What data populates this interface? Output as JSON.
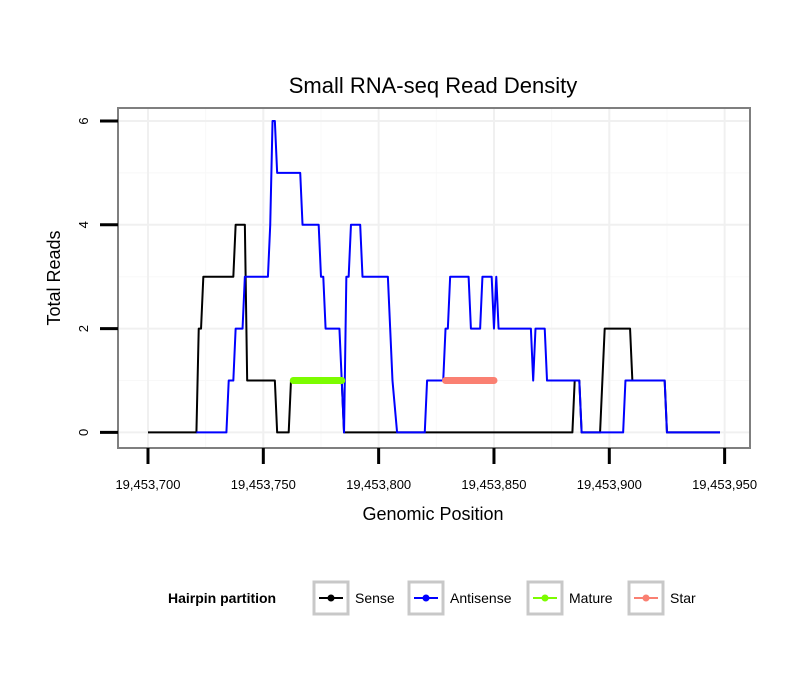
{
  "chart_data": {
    "type": "line",
    "title": "Small RNA-seq Read Density",
    "xlabel": "Genomic Position",
    "ylabel": "Total Reads",
    "xlim": [
      19453687,
      19453961
    ],
    "ylim": [
      -0.3,
      6.25
    ],
    "x_ticks": [
      19453700,
      19453750,
      19453800,
      19453850,
      19453900,
      19453950
    ],
    "x_tick_labels": [
      "19,453,700",
      "19,453,750",
      "19,453,800",
      "19,453,850",
      "19,453,900",
      "19,453,950"
    ],
    "y_ticks": [
      0,
      2,
      4,
      6
    ],
    "y_tick_labels": [
      "0",
      "2",
      "4",
      "6"
    ],
    "grid": true,
    "legend": {
      "title": "Hairpin partition",
      "position": "bottom",
      "entries": [
        {
          "name": "Sense",
          "color": "#000000"
        },
        {
          "name": "Antisense",
          "color": "#0000ff"
        },
        {
          "name": "Mature",
          "color": "#7cfc00"
        },
        {
          "name": "Star",
          "color": "#fa8072"
        }
      ]
    },
    "series": [
      {
        "name": "Sense",
        "color": "#000000",
        "points": [
          [
            19453700,
            0
          ],
          [
            19453721,
            0
          ],
          [
            19453722,
            2
          ],
          [
            19453723,
            2
          ],
          [
            19453724,
            3
          ],
          [
            19453737,
            3
          ],
          [
            19453738,
            4
          ],
          [
            19453742,
            4
          ],
          [
            19453743,
            1
          ],
          [
            19453755,
            1
          ],
          [
            19453756,
            0
          ],
          [
            19453761,
            0
          ],
          [
            19453762,
            1
          ],
          [
            19453784,
            1
          ],
          [
            19453785,
            0
          ],
          [
            19453850,
            0
          ],
          [
            19453851,
            0
          ],
          [
            19453884,
            0
          ],
          [
            19453885,
            1
          ],
          [
            19453887,
            1
          ],
          [
            19453888,
            0
          ],
          [
            19453896,
            0
          ],
          [
            19453897,
            1
          ],
          [
            19453898,
            2
          ],
          [
            19453909,
            2
          ],
          [
            19453910,
            1
          ],
          [
            19453924,
            1
          ],
          [
            19453925,
            0
          ],
          [
            19453948,
            0
          ]
        ]
      },
      {
        "name": "Antisense",
        "color": "#0000ff",
        "points": [
          [
            19453721,
            0
          ],
          [
            19453734,
            0
          ],
          [
            19453735,
            1
          ],
          [
            19453737,
            1
          ],
          [
            19453738,
            2
          ],
          [
            19453741,
            2
          ],
          [
            19453742,
            3
          ],
          [
            19453752,
            3
          ],
          [
            19453753,
            4
          ],
          [
            19453754,
            6
          ],
          [
            19453755,
            6
          ],
          [
            19453756,
            5
          ],
          [
            19453766,
            5
          ],
          [
            19453767,
            4
          ],
          [
            19453774,
            4
          ],
          [
            19453775,
            3
          ],
          [
            19453776,
            3
          ],
          [
            19453777,
            2
          ],
          [
            19453783,
            2
          ],
          [
            19453784,
            1
          ],
          [
            19453785,
            0
          ],
          [
            19453786,
            3
          ],
          [
            19453787,
            3
          ],
          [
            19453788,
            4
          ],
          [
            19453792,
            4
          ],
          [
            19453793,
            3
          ],
          [
            19453804,
            3
          ],
          [
            19453805,
            2
          ],
          [
            19453806,
            1
          ],
          [
            19453808,
            0
          ],
          [
            19453820,
            0
          ],
          [
            19453821,
            1
          ],
          [
            19453828,
            1
          ],
          [
            19453829,
            2
          ],
          [
            19453830,
            2
          ],
          [
            19453831,
            3
          ],
          [
            19453839,
            3
          ],
          [
            19453840,
            2
          ],
          [
            19453844,
            2
          ],
          [
            19453845,
            3
          ],
          [
            19453849,
            3
          ],
          [
            19453850,
            2
          ],
          [
            19453851,
            3
          ],
          [
            19453852,
            2
          ],
          [
            19453866,
            2
          ],
          [
            19453867,
            1
          ],
          [
            19453868,
            2
          ],
          [
            19453872,
            2
          ],
          [
            19453873,
            1
          ],
          [
            19453887,
            1
          ],
          [
            19453888,
            0
          ],
          [
            19453906,
            0
          ],
          [
            19453907,
            1
          ],
          [
            19453924,
            1
          ],
          [
            19453925,
            0
          ],
          [
            19453948,
            0
          ]
        ]
      },
      {
        "name": "Mature",
        "color": "#7cfc00",
        "points": [
          [
            19453763,
            1
          ],
          [
            19453784,
            1
          ]
        ]
      },
      {
        "name": "Star",
        "color": "#fa8072",
        "points": [
          [
            19453829,
            1
          ],
          [
            19453850,
            1
          ]
        ]
      }
    ]
  }
}
